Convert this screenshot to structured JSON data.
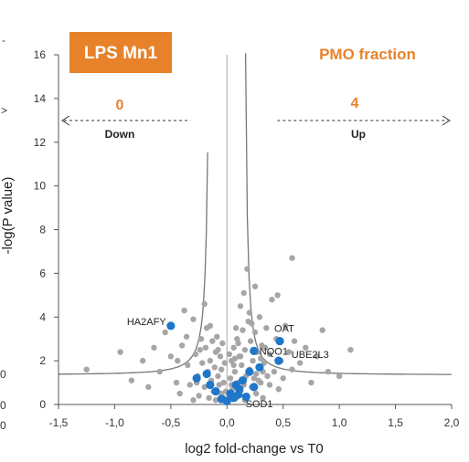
{
  "chart_data": {
    "type": "scatter",
    "title": "LPS Mn1",
    "subtitle": "PMO fraction",
    "xlabel": "log2 fold-change vs T0",
    "ylabel": "-log(P value)",
    "xlim": [
      -1.5,
      2.0
    ],
    "ylim": [
      0,
      16
    ],
    "x_ticks": [
      -1.5,
      -1.0,
      -0.5,
      0.0,
      0.5,
      1.0,
      1.5,
      2.0
    ],
    "x_tick_labels": [
      "-1,5",
      "-1,0",
      "-0,5",
      "0,0",
      "0,5",
      "1,0",
      "1,5",
      "2,0"
    ],
    "y_ticks": [
      0,
      2,
      4,
      6,
      8,
      10,
      12,
      14,
      16
    ],
    "y_tick_labels": [
      "0",
      "2",
      "4",
      "6",
      "8",
      "10",
      "12",
      "14",
      "16"
    ],
    "left_edge_labels": [
      "-",
      ">",
      "0",
      "0",
      "0"
    ],
    "grid": false,
    "down": {
      "label": "Down",
      "count": "0"
    },
    "up": {
      "label": "Up",
      "count": "4"
    },
    "highlight_color": "#1f77c9",
    "background_color": "#a6a6a6",
    "title_box_color": "#e8822a",
    "background_points": [
      [
        -1.25,
        1.6
      ],
      [
        -0.95,
        2.4
      ],
      [
        -0.85,
        1.1
      ],
      [
        -0.75,
        2.0
      ],
      [
        -0.7,
        0.8
      ],
      [
        -0.65,
        2.6
      ],
      [
        -0.6,
        1.5
      ],
      [
        -0.55,
        3.3
      ],
      [
        -0.5,
        2.2
      ],
      [
        -0.45,
        1.0
      ],
      [
        -0.42,
        0.5
      ],
      [
        -0.4,
        2.7
      ],
      [
        -0.38,
        4.3
      ],
      [
        -0.35,
        1.8
      ],
      [
        -0.33,
        0.9
      ],
      [
        -0.3,
        3.9
      ],
      [
        -0.28,
        2.3
      ],
      [
        -0.26,
        1.3
      ],
      [
        -0.25,
        0.4
      ],
      [
        -0.23,
        3.0
      ],
      [
        -0.22,
        1.9
      ],
      [
        -0.2,
        0.8
      ],
      [
        -0.19,
        2.6
      ],
      [
        -0.18,
        3.5
      ],
      [
        -0.17,
        1.5
      ],
      [
        -0.16,
        0.3
      ],
      [
        -0.15,
        2.0
      ],
      [
        -0.14,
        1.1
      ],
      [
        -0.13,
        2.9
      ],
      [
        -0.12,
        0.6
      ],
      [
        -0.11,
        1.7
      ],
      [
        -0.1,
        2.4
      ],
      [
        -0.1,
        0.2
      ],
      [
        -0.09,
        3.1
      ],
      [
        -0.08,
        1.3
      ],
      [
        -0.07,
        0.9
      ],
      [
        -0.06,
        2.2
      ],
      [
        -0.05,
        0.5
      ],
      [
        -0.05,
        1.6
      ],
      [
        -0.04,
        2.8
      ],
      [
        -0.03,
        0.3
      ],
      [
        -0.03,
        1.0
      ],
      [
        -0.02,
        1.9
      ],
      [
        -0.01,
        0.6
      ],
      [
        -0.2,
        4.6
      ],
      [
        -0.3,
        0.2
      ],
      [
        -0.24,
        2.5
      ],
      [
        -0.36,
        3.1
      ],
      [
        -0.44,
        2.0
      ],
      [
        -0.27,
        1.0
      ],
      [
        -0.15,
        3.6
      ],
      [
        -0.08,
        2.5
      ],
      [
        0.02,
        0.4
      ],
      [
        0.03,
        1.2
      ],
      [
        0.04,
        2.0
      ],
      [
        0.05,
        0.7
      ],
      [
        0.06,
        2.6
      ],
      [
        0.07,
        1.5
      ],
      [
        0.08,
        0.3
      ],
      [
        0.09,
        3.0
      ],
      [
        0.1,
        1.0
      ],
      [
        0.11,
        2.2
      ],
      [
        0.12,
        0.6
      ],
      [
        0.13,
        1.8
      ],
      [
        0.14,
        3.4
      ],
      [
        0.15,
        0.9
      ],
      [
        0.16,
        2.5
      ],
      [
        0.17,
        1.3
      ],
      [
        0.18,
        0.4
      ],
      [
        0.19,
        3.8
      ],
      [
        0.2,
        1.6
      ],
      [
        0.21,
        2.9
      ],
      [
        0.22,
        0.8
      ],
      [
        0.23,
        2.0
      ],
      [
        0.24,
        1.2
      ],
      [
        0.25,
        3.3
      ],
      [
        0.26,
        0.5
      ],
      [
        0.27,
        2.4
      ],
      [
        0.28,
        1.7
      ],
      [
        0.29,
        4.0
      ],
      [
        0.3,
        1.0
      ],
      [
        0.31,
        2.7
      ],
      [
        0.32,
        0.3
      ],
      [
        0.33,
        1.9
      ],
      [
        0.35,
        3.5
      ],
      [
        0.36,
        1.3
      ],
      [
        0.38,
        2.3
      ],
      [
        0.4,
        4.8
      ],
      [
        0.42,
        1.5
      ],
      [
        0.44,
        3.0
      ],
      [
        0.46,
        0.7
      ],
      [
        0.48,
        2.0
      ],
      [
        0.5,
        1.2
      ],
      [
        0.52,
        3.6
      ],
      [
        0.55,
        2.4
      ],
      [
        0.58,
        1.6
      ],
      [
        0.6,
        2.9
      ],
      [
        0.65,
        1.9
      ],
      [
        0.7,
        2.6
      ],
      [
        0.75,
        1.0
      ],
      [
        0.8,
        2.2
      ],
      [
        0.85,
        3.4
      ],
      [
        0.9,
        1.5
      ],
      [
        1.0,
        1.3
      ],
      [
        1.1,
        2.5
      ],
      [
        0.15,
        5.1
      ],
      [
        0.18,
        6.2
      ],
      [
        0.25,
        5.4
      ],
      [
        0.12,
        4.5
      ],
      [
        0.2,
        4.2
      ],
      [
        0.08,
        3.5
      ],
      [
        0.22,
        3.7
      ],
      [
        0.06,
        1.8
      ],
      [
        0.1,
        2.8
      ],
      [
        0.14,
        1.1
      ],
      [
        0.3,
        2.1
      ],
      [
        0.34,
        2.6
      ],
      [
        0.02,
        2.3
      ],
      [
        0.04,
        0.9
      ],
      [
        0.07,
        2.1
      ],
      [
        0.16,
        0.2
      ],
      [
        0.26,
        1.4
      ],
      [
        0.38,
        0.9
      ],
      [
        0.58,
        6.7
      ],
      [
        0.45,
        5.0
      ],
      [
        0.28,
        1.1
      ],
      [
        0.12,
        2.2
      ],
      [
        0.32,
        1.5
      ]
    ],
    "highlighted_points": [
      {
        "x": -0.5,
        "y": 3.6,
        "label": "HA2AFY"
      },
      {
        "x": 0.47,
        "y": 2.9,
        "label": "OAT"
      },
      {
        "x": 0.24,
        "y": 2.45,
        "label": "NQO1"
      },
      {
        "x": 0.46,
        "y": 2.0,
        "label": "UBE2L3"
      },
      {
        "x": 0.1,
        "y": 0.45,
        "label": "SOD1"
      },
      {
        "x": -0.27,
        "y": 1.2,
        "label": ""
      },
      {
        "x": -0.18,
        "y": 1.4,
        "label": ""
      },
      {
        "x": -0.1,
        "y": 0.6,
        "label": ""
      },
      {
        "x": -0.05,
        "y": 0.25,
        "label": ""
      },
      {
        "x": 0.0,
        "y": 0.15,
        "label": ""
      },
      {
        "x": 0.03,
        "y": 0.5,
        "label": ""
      },
      {
        "x": 0.06,
        "y": 0.3,
        "label": ""
      },
      {
        "x": 0.08,
        "y": 0.9,
        "label": ""
      },
      {
        "x": 0.11,
        "y": 0.7,
        "label": ""
      },
      {
        "x": 0.14,
        "y": 1.1,
        "label": ""
      },
      {
        "x": 0.2,
        "y": 1.5,
        "label": ""
      },
      {
        "x": 0.24,
        "y": 0.8,
        "label": ""
      },
      {
        "x": 0.29,
        "y": 1.7,
        "label": ""
      },
      {
        "x": -0.15,
        "y": 0.9,
        "label": ""
      },
      {
        "x": 0.17,
        "y": 0.35,
        "label": ""
      }
    ]
  }
}
